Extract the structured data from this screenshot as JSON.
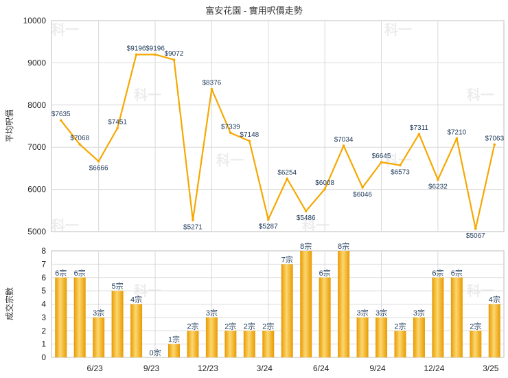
{
  "chart_data": [
    {
      "type": "line",
      "title": "富安花園 - 實用呎價走勢",
      "ylabel": "平均呎價",
      "ylim": [
        5000,
        10000
      ],
      "yticks": [
        5000,
        6000,
        7000,
        8000,
        9000,
        10000
      ],
      "grid": true,
      "label_prefix": "$",
      "color": "#f5a800",
      "series": [
        {
          "values": [
            7635,
            7068,
            6666,
            7451,
            9196,
            9196,
            9072,
            5271,
            8376,
            7339,
            7148,
            5287,
            6254,
            5486,
            6008,
            7034,
            6046,
            6645,
            6573,
            7311,
            6232,
            7210,
            5067,
            7063
          ]
        }
      ]
    },
    {
      "type": "bar",
      "ylabel": "成交宗數",
      "ylim": [
        0,
        8
      ],
      "yticks": [
        0,
        1,
        2,
        3,
        4,
        5,
        6,
        7,
        8
      ],
      "grid": true,
      "label_suffix": "宗",
      "color": "#f5a800",
      "series": [
        {
          "values": [
            6,
            6,
            3,
            5,
            4,
            0,
            1,
            2,
            3,
            2,
            2,
            2,
            7,
            8,
            6,
            8,
            3,
            3,
            2,
            3,
            6,
            6,
            2,
            4
          ]
        }
      ],
      "xticks": [
        {
          "index": 2,
          "label": "6/23"
        },
        {
          "index": 5,
          "label": "9/23"
        },
        {
          "index": 8,
          "label": "12/23"
        },
        {
          "index": 11,
          "label": "3/24"
        },
        {
          "index": 14,
          "label": "6/24"
        },
        {
          "index": 17,
          "label": "9/24"
        },
        {
          "index": 20,
          "label": "12/24"
        },
        {
          "index": 23,
          "label": "3/25"
        }
      ]
    }
  ],
  "watermark": "科一",
  "colors": {
    "accent": "#f5a800",
    "bar_light": "#fbd46b",
    "bar_dark": "#e89a00",
    "grid": "#d9d9d9",
    "label": "#1f3a5a"
  }
}
